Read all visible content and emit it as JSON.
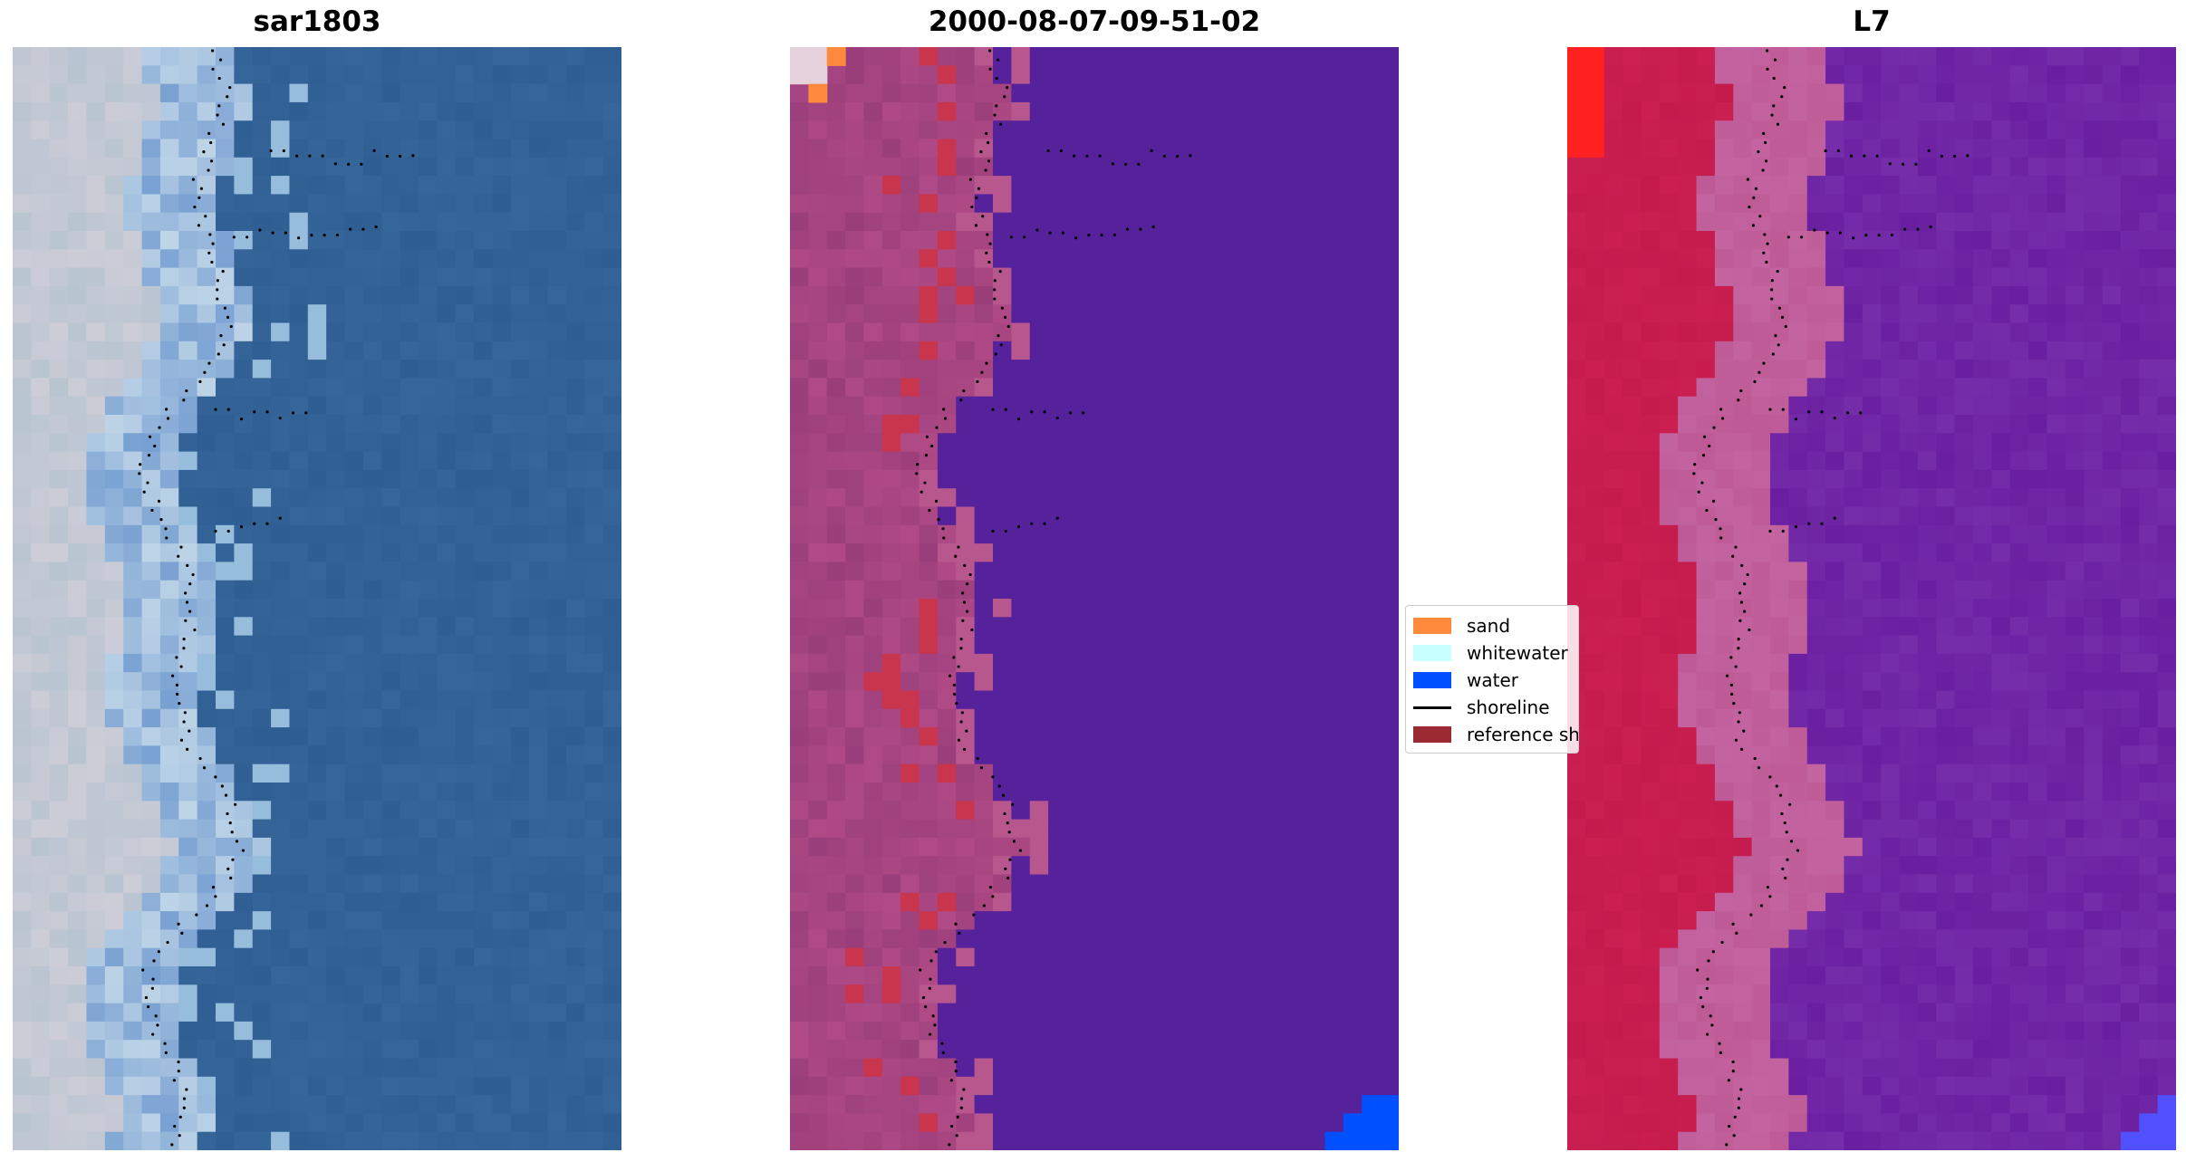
{
  "panels": [
    {
      "title": "sar1803",
      "content": "satellite-rgb-image"
    },
    {
      "title": "2000-08-07-09-51-02",
      "content": "classified-image"
    },
    {
      "title": "L7",
      "content": "water-index-image"
    }
  ],
  "legend": {
    "items": [
      {
        "label": "sand",
        "color": "#ff8a3d",
        "kind": "patch"
      },
      {
        "label": "whitewater",
        "color": "#c8ffff",
        "kind": "patch"
      },
      {
        "label": "water",
        "color": "#0050ff",
        "kind": "patch"
      },
      {
        "label": "shoreline",
        "color": "#000000",
        "kind": "line"
      },
      {
        "label": "reference shoreline buffer",
        "color": "#9b2a33",
        "kind": "patch"
      }
    ]
  },
  "colors": {
    "ocean_blue": "#2f5e93",
    "class_water": "#55229c",
    "class_land": "#b04a86",
    "class_buffer": "#c8354d",
    "index_water": "#6a1fa0",
    "index_land": "#c41a4c",
    "index_edge": "#ff2020",
    "index_corner": "#5050ff"
  }
}
